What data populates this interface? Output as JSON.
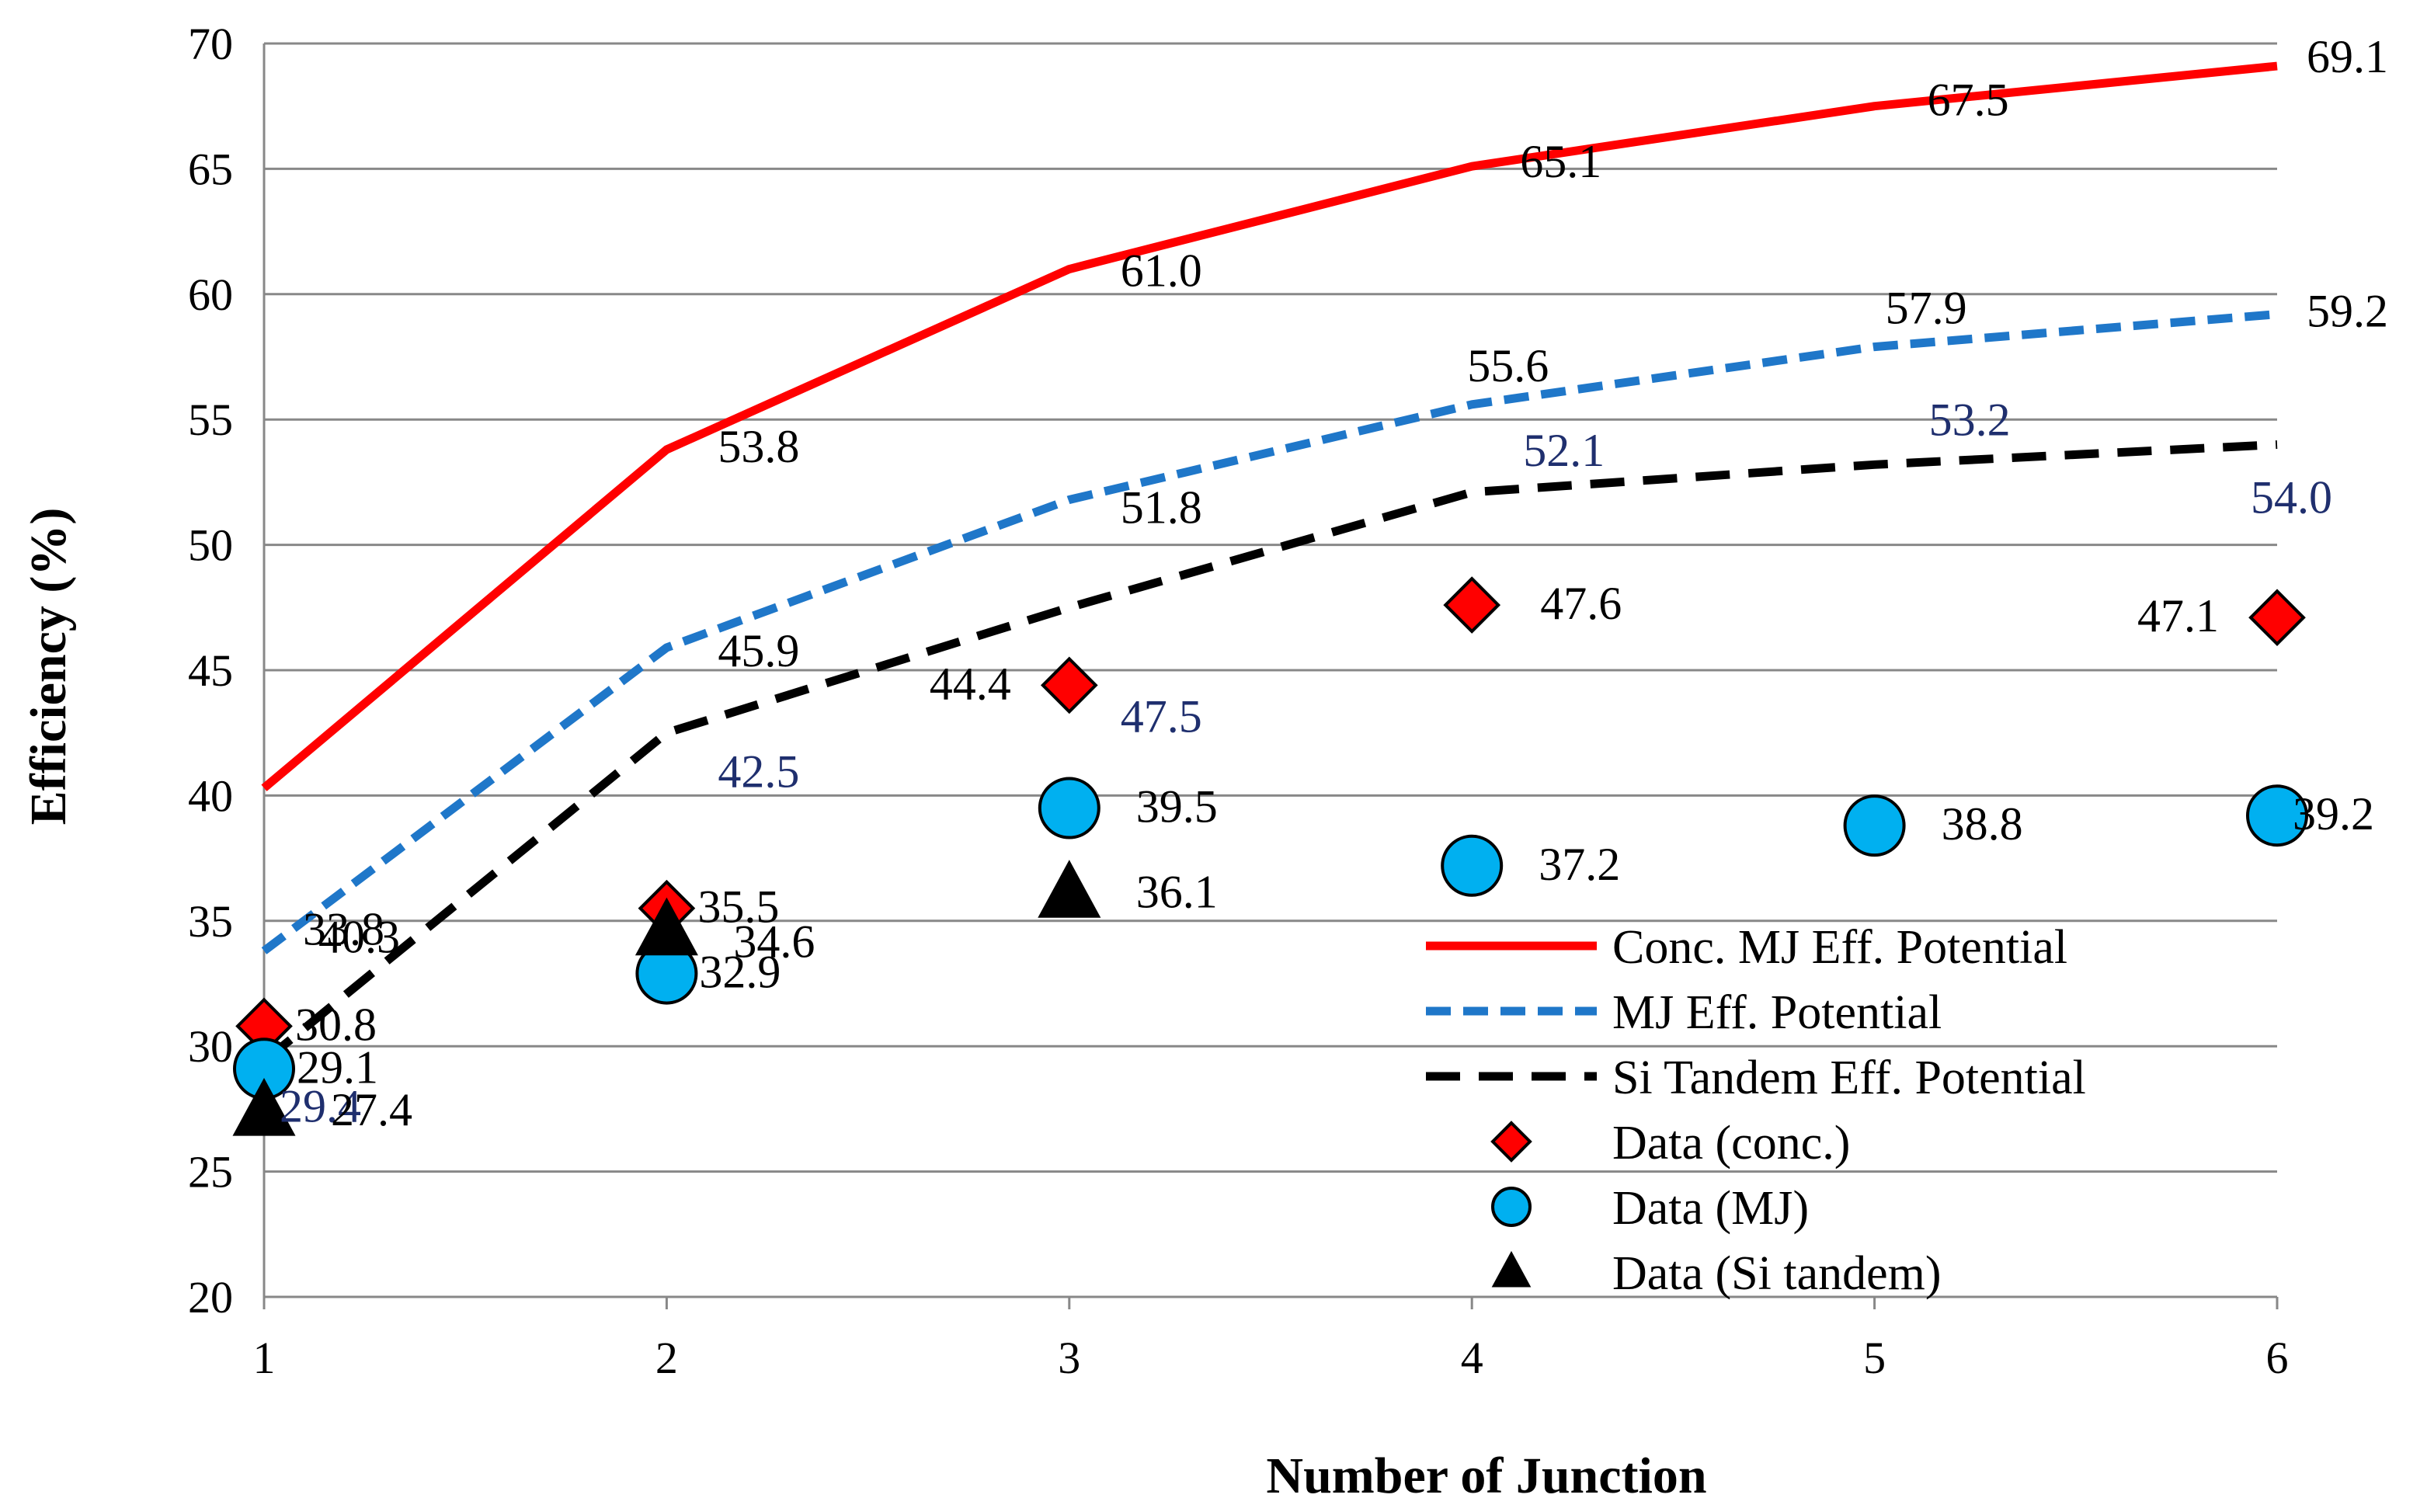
{
  "chart_data": {
    "type": "line",
    "title": "",
    "xlabel": "Number of Junction",
    "ylabel": "Efficiency (%)",
    "xlim": [
      1,
      6
    ],
    "ylim": [
      20,
      70
    ],
    "x_ticks": [
      "1",
      "2",
      "3",
      "4",
      "5",
      "6"
    ],
    "y_ticks": [
      "20",
      "25",
      "30",
      "35",
      "40",
      "45",
      "50",
      "55",
      "60",
      "65",
      "70"
    ],
    "grid": true,
    "legend_position": "bottom-right",
    "colors": {
      "conc_line": "#ff0000",
      "mj_line": "#1f77c9",
      "si_line": "#000000",
      "conc_marker": "#ff0000",
      "mj_marker": "#00b0f0",
      "si_marker": "#000000",
      "dark_blue_label": "#1f2f6e"
    },
    "series": [
      {
        "name": "Conc. MJ Eff. Potential",
        "kind": "line",
        "style": "solid",
        "x": [
          1,
          2,
          3,
          4,
          5,
          6
        ],
        "values": [
          40.3,
          53.8,
          61.0,
          65.1,
          67.5,
          69.1
        ],
        "labels": [
          "40.3",
          "53.8",
          "61.0",
          "65.1",
          "67.5",
          "69.1"
        ]
      },
      {
        "name": "MJ Eff. Potential",
        "kind": "line",
        "style": "dashed",
        "x": [
          1,
          2,
          3,
          4,
          5,
          6
        ],
        "values": [
          33.8,
          45.9,
          51.8,
          55.6,
          57.9,
          59.2
        ],
        "labels": [
          "33.8",
          "45.9",
          "51.8",
          "55.6",
          "57.9",
          "59.2"
        ]
      },
      {
        "name": "Si Tandem Eff. Potential",
        "kind": "line",
        "style": "long-dashed",
        "x": [
          1,
          2,
          3,
          4,
          5,
          6
        ],
        "values": [
          29.4,
          42.5,
          47.5,
          52.1,
          53.2,
          54.0
        ],
        "labels": [
          "29.4",
          "42.5",
          "47.5",
          "52.1",
          "53.2",
          "54.0"
        ]
      },
      {
        "name": "Data (conc.)",
        "kind": "marker",
        "marker": "diamond",
        "x": [
          1,
          2,
          3,
          4,
          6
        ],
        "values": [
          30.8,
          35.5,
          44.4,
          47.6,
          47.1
        ],
        "labels": [
          "30.8",
          "35.5",
          "44.4",
          "47.6",
          "47.1"
        ]
      },
      {
        "name": "Data (MJ)",
        "kind": "marker",
        "marker": "circle",
        "x": [
          1,
          2,
          3,
          4,
          5,
          6
        ],
        "values": [
          29.1,
          32.9,
          39.5,
          37.2,
          38.8,
          39.2
        ],
        "labels": [
          "29.1",
          "32.9",
          "39.5",
          "37.2",
          "38.8",
          "39.2"
        ]
      },
      {
        "name": "Data (Si tandem)",
        "kind": "marker",
        "marker": "triangle",
        "x": [
          1,
          2,
          3
        ],
        "values": [
          27.4,
          34.6,
          36.1
        ],
        "labels": [
          "27.4",
          "34.6",
          "36.1"
        ]
      }
    ]
  }
}
